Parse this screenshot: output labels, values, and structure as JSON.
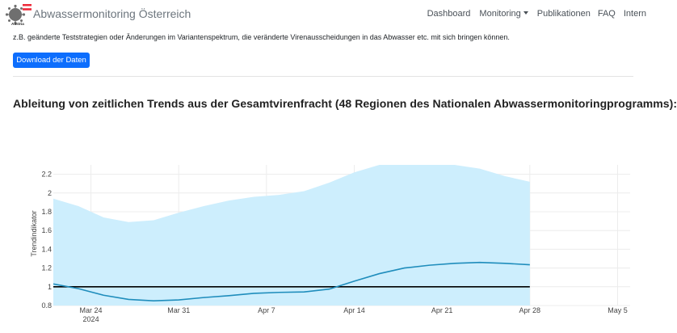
{
  "header": {
    "brand": "Abwassermonitoring Österreich",
    "logo_text": "Austria",
    "logo_icon": "virus-icon",
    "nav": [
      "Dashboard",
      "Monitoring",
      "Publikationen",
      "FAQ",
      "Intern"
    ]
  },
  "intro_text": "z.B. geänderte Teststrategien oder Änderungen im Variantenspektrum, die veränderte Virenausscheidungen in das Abwasser etc. mit sich bringen können.",
  "download_button": "Download der Daten",
  "section_title": "Ableitung von zeitlichen Trends aus der Gesamtvirenfracht (48 Regionen des Nationalen Abwassermonitoringprogramms):",
  "colors": {
    "band": "#cdeefd",
    "line": "#1f8dbc",
    "reference": "#000000",
    "button": "#0d6efd"
  },
  "chart_data": {
    "type": "line",
    "ylabel": "Trendindikator",
    "ylim": [
      0.8,
      2.3
    ],
    "yticks": [
      0.8,
      1,
      1.2,
      1.4,
      1.6,
      1.8,
      2,
      2.2
    ],
    "ytick_labels": [
      "0.8",
      "1",
      "1.2",
      "1.4",
      "1.6",
      "1.8",
      "2",
      "2.2"
    ],
    "xlim": [
      "2024-03-21",
      "2024-05-06"
    ],
    "xticks": [
      "2024-03-24",
      "2024-03-31",
      "2024-04-07",
      "2024-04-14",
      "2024-04-21",
      "2024-04-28",
      "2024-05-05"
    ],
    "xtick_labels": [
      "Mar 24",
      "Mar 31",
      "Apr 7",
      "Apr 14",
      "Apr 21",
      "Apr 28",
      "May 5"
    ],
    "year_label": "2024",
    "reference_line": 1,
    "x": [
      "2024-03-21",
      "2024-03-23",
      "2024-03-25",
      "2024-03-27",
      "2024-03-29",
      "2024-03-31",
      "2024-04-02",
      "2024-04-04",
      "2024-04-06",
      "2024-04-08",
      "2024-04-10",
      "2024-04-12",
      "2024-04-14",
      "2024-04-16",
      "2024-04-18",
      "2024-04-20",
      "2024-04-22",
      "2024-04-24",
      "2024-04-26",
      "2024-04-28"
    ],
    "series": [
      {
        "values": [
          1.03,
          0.98,
          0.91,
          0.865,
          0.85,
          0.86,
          0.885,
          0.905,
          0.93,
          0.94,
          0.945,
          0.975,
          1.06,
          1.14,
          1.2,
          1.23,
          1.25,
          1.26,
          1.25,
          1.235
        ]
      }
    ],
    "band_upper": [
      1.94,
      1.86,
      1.74,
      1.69,
      1.71,
      1.79,
      1.86,
      1.92,
      1.96,
      1.98,
      2.02,
      2.11,
      2.22,
      2.3,
      2.3,
      2.3,
      2.3,
      2.26,
      2.18,
      2.12
    ],
    "band_lower": [
      0.8,
      0.8,
      0.8,
      0.8,
      0.8,
      0.8,
      0.8,
      0.8,
      0.8,
      0.8,
      0.8,
      0.8,
      0.8,
      0.8,
      0.8,
      0.8,
      0.8,
      0.8,
      0.8,
      0.8
    ]
  }
}
